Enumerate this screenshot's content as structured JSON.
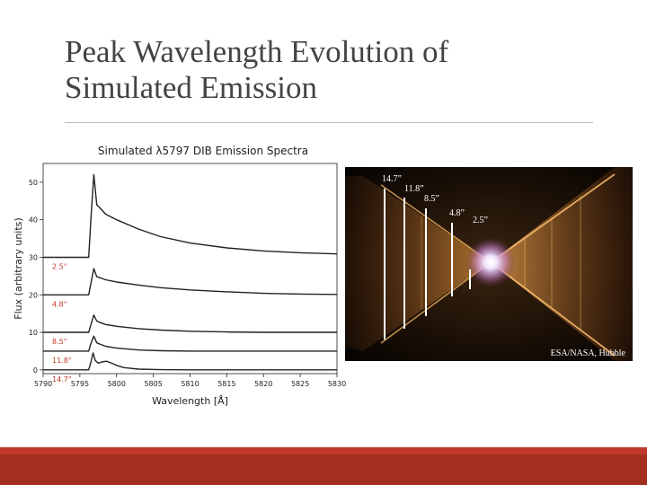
{
  "slide": {
    "title_line1": "Peak Wavelength Evolution of",
    "title_line2": "Simulated Emission"
  },
  "chart_data": {
    "type": "line",
    "title": "Simulated λ5797 DIB Emission Spectra",
    "xlabel": "Wavelength [Å]",
    "ylabel": "Flux (arbitrary units)",
    "xlim": [
      5790,
      5830
    ],
    "ylim": [
      -1,
      55
    ],
    "xticks": [
      5790,
      5795,
      5800,
      5805,
      5810,
      5815,
      5820,
      5825,
      5830
    ],
    "yticks": [
      0,
      10,
      20,
      30,
      40,
      50
    ],
    "grid": false,
    "line_color": "#222222",
    "series": [
      {
        "name": "2.5\"",
        "offset": 30,
        "x": [
          5790,
          5796.2,
          5796.5,
          5796.9,
          5797.3,
          5797.8,
          5798.5,
          5800,
          5803,
          5806,
          5810,
          5815,
          5820,
          5825,
          5830
        ],
        "y": [
          30,
          30,
          40,
          52,
          44,
          43,
          41.5,
          40,
          37.5,
          35.5,
          33.8,
          32.5,
          31.7,
          31.2,
          30.9
        ]
      },
      {
        "name": "4.8\"",
        "offset": 20,
        "x": [
          5790,
          5796.2,
          5796.5,
          5796.9,
          5797.3,
          5797.8,
          5798.5,
          5800,
          5803,
          5806,
          5810,
          5815,
          5820,
          5825,
          5830
        ],
        "y": [
          20,
          20,
          23,
          27,
          24.8,
          24.5,
          24,
          23.4,
          22.6,
          21.9,
          21.3,
          20.8,
          20.4,
          20.2,
          20.1
        ]
      },
      {
        "name": "8.5\"",
        "offset": 10,
        "x": [
          5790,
          5796.2,
          5796.5,
          5796.9,
          5797.3,
          5797.8,
          5798.5,
          5800,
          5803,
          5806,
          5810,
          5815,
          5820,
          5825,
          5830
        ],
        "y": [
          10,
          10,
          12,
          14.6,
          13,
          12.6,
          12.1,
          11.6,
          11,
          10.6,
          10.3,
          10.1,
          10,
          10,
          10
        ]
      },
      {
        "name": "11.8\"",
        "offset": 5,
        "x": [
          5790,
          5796.2,
          5796.5,
          5796.9,
          5797.3,
          5797.8,
          5798.5,
          5800,
          5803,
          5806,
          5810,
          5815,
          5820,
          5825,
          5830
        ],
        "y": [
          5,
          5,
          7,
          9,
          7.2,
          6.8,
          6.3,
          5.8,
          5.3,
          5.1,
          5,
          5,
          5,
          5,
          5
        ]
      },
      {
        "name": "14.7\"",
        "offset": 0,
        "x": [
          5790,
          5796.2,
          5796.5,
          5796.8,
          5797.1,
          5797.5,
          5798,
          5798.6,
          5799.2,
          5800,
          5801,
          5803,
          5806,
          5810,
          5830
        ],
        "y": [
          0,
          0,
          2,
          4.5,
          2.5,
          1.8,
          2.1,
          2.3,
          1.9,
          1.2,
          0.6,
          0.2,
          0.05,
          0,
          0
        ]
      }
    ]
  },
  "image": {
    "subject": "red-rectangle-nebula",
    "credit": "ESA/NASA, Hubble",
    "distance_labels": [
      "14.7”",
      "11.8”",
      "8.5”",
      "4.8”",
      "2.5”"
    ]
  }
}
